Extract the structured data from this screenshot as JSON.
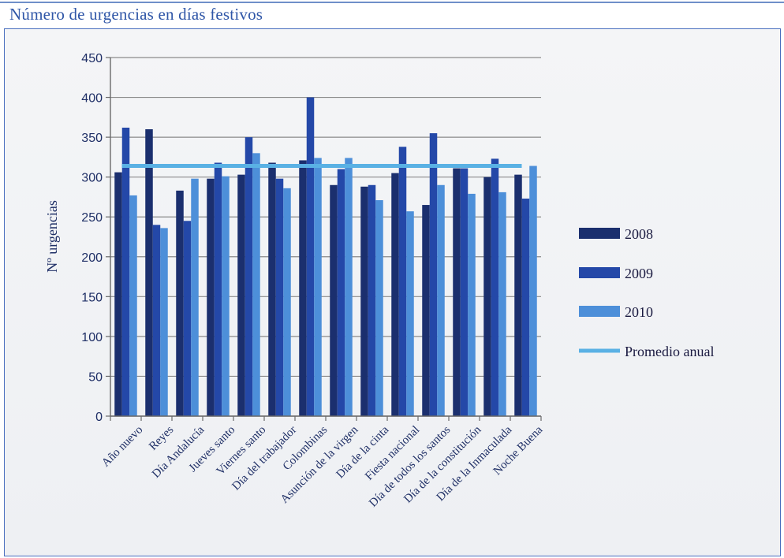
{
  "header": {
    "title": "Número de urgencias en días festivos"
  },
  "chart_data": {
    "type": "bar",
    "title": "Número de urgencias en días festivos",
    "xlabel": "",
    "ylabel": "Nº urgencias",
    "ylim": [
      0,
      450
    ],
    "yticks": [
      0,
      50,
      100,
      150,
      200,
      250,
      300,
      350,
      400,
      450
    ],
    "grid": true,
    "legend_position": "right",
    "categories": [
      "Año nuevo",
      "Reyes",
      "Día Andalucía",
      "Jueves santo",
      "Viernes santo",
      "Día del trabajador",
      "Colombinas",
      "Asunción de la virgen",
      "Día de la cinta",
      "Fiesta nacional",
      "Día de todos los santos",
      "Día de la constitución",
      "Día de la Inmaculada",
      "Noche Buena"
    ],
    "series": [
      {
        "name": "2008",
        "type": "bar",
        "color": "#1b2f6e",
        "values": [
          306,
          360,
          283,
          298,
          303,
          318,
          321,
          290,
          288,
          305,
          265,
          311,
          300,
          303
        ]
      },
      {
        "name": "2009",
        "type": "bar",
        "color": "#2448a8",
        "values": [
          362,
          240,
          245,
          318,
          350,
          298,
          400,
          310,
          290,
          338,
          355,
          311,
          323,
          273
        ]
      },
      {
        "name": "2010",
        "type": "bar",
        "color": "#4d8fd9",
        "values": [
          277,
          236,
          298,
          301,
          330,
          286,
          324,
          324,
          271,
          257,
          290,
          279,
          281,
          314
        ]
      },
      {
        "name": "Promedio anual",
        "type": "line",
        "color": "#5ab1e4",
        "values": [
          314,
          314,
          314,
          314,
          314,
          314,
          314,
          314,
          314,
          314,
          314,
          314,
          314,
          314
        ]
      }
    ]
  }
}
